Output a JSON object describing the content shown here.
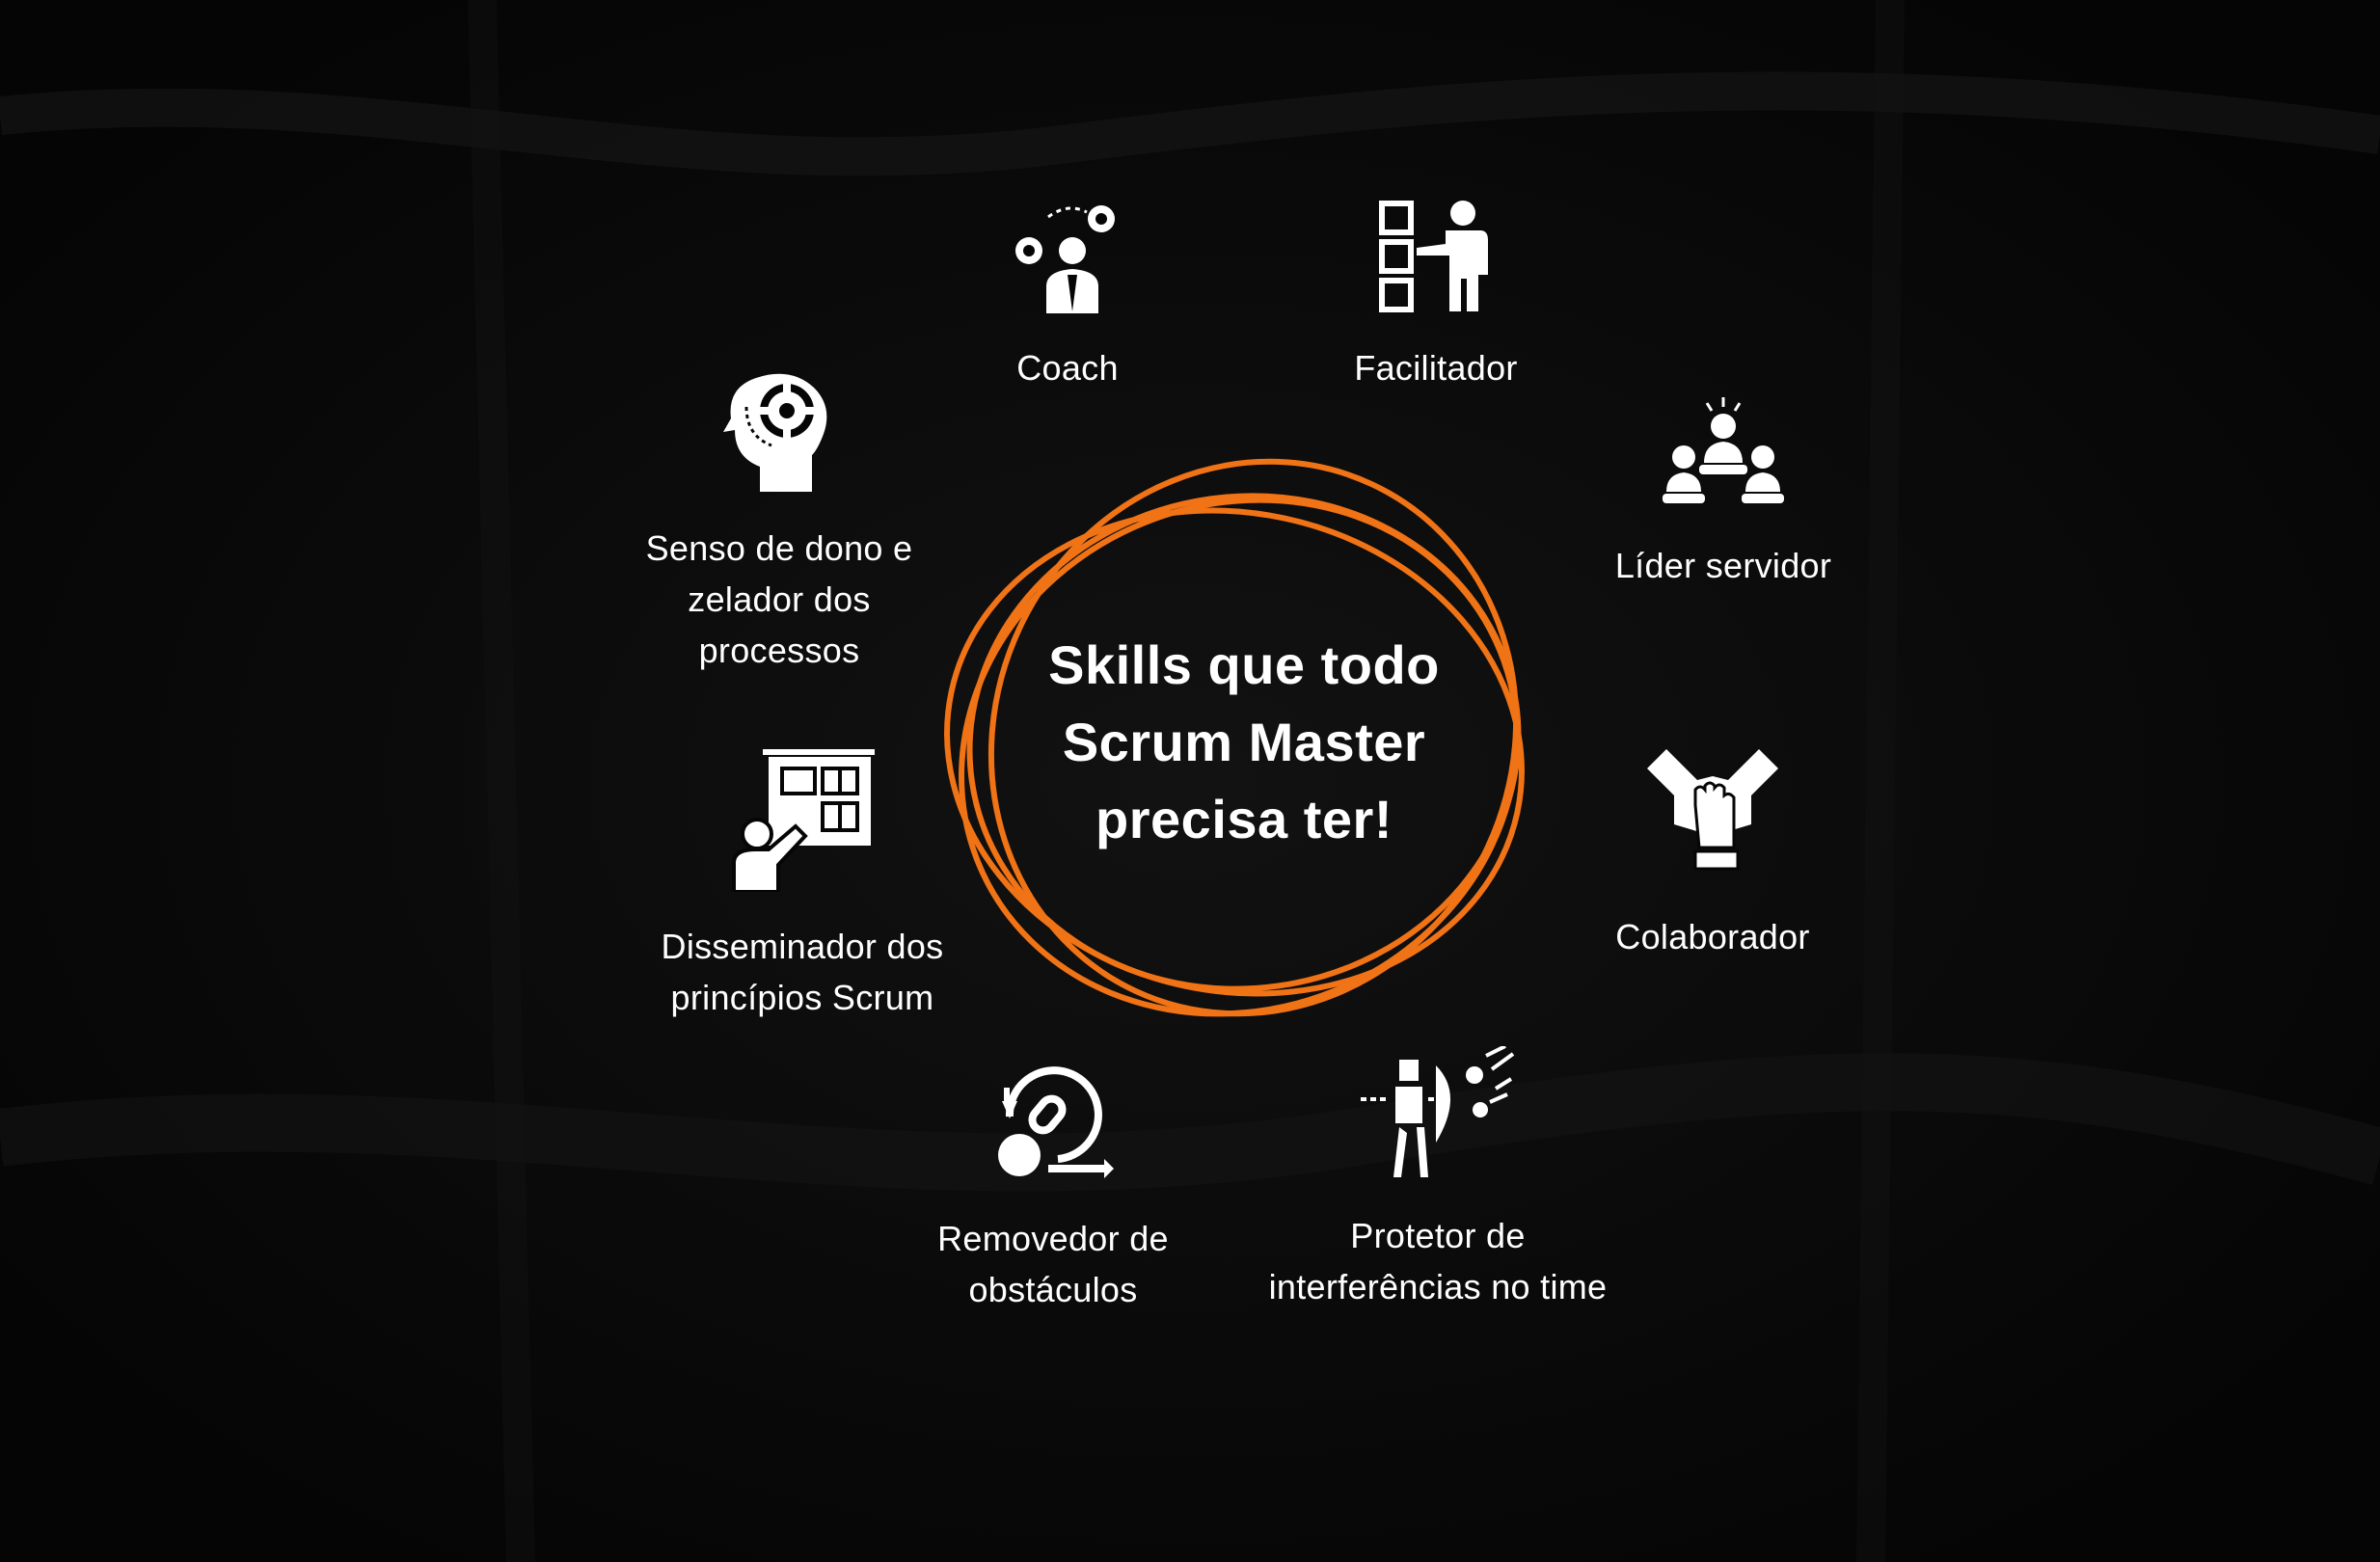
{
  "title": "Skills que todo Scrum Master precisa ter!",
  "colors": {
    "background": "#060606",
    "accent": "#f07316",
    "text": "#ffffff"
  },
  "skills": [
    {
      "label": "Coach",
      "icon": "coach-gears-icon"
    },
    {
      "label": "Facilitador",
      "icon": "facilitator-board-icon"
    },
    {
      "label": "Líder servidor",
      "icon": "servant-leader-icon"
    },
    {
      "label": "Colaborador",
      "icon": "collaboration-hands-icon"
    },
    {
      "label": "Protetor de\ninterferências no time",
      "icon": "protector-shield-icon"
    },
    {
      "label": "Removedor de\nobstáculos",
      "icon": "obstacle-remover-icon"
    },
    {
      "label": "Disseminador dos\nprincípios Scrum",
      "icon": "scrum-board-presenter-icon"
    },
    {
      "label": "Senso de dono e\nzelador dos\nprocessos",
      "icon": "head-gear-icon"
    }
  ]
}
